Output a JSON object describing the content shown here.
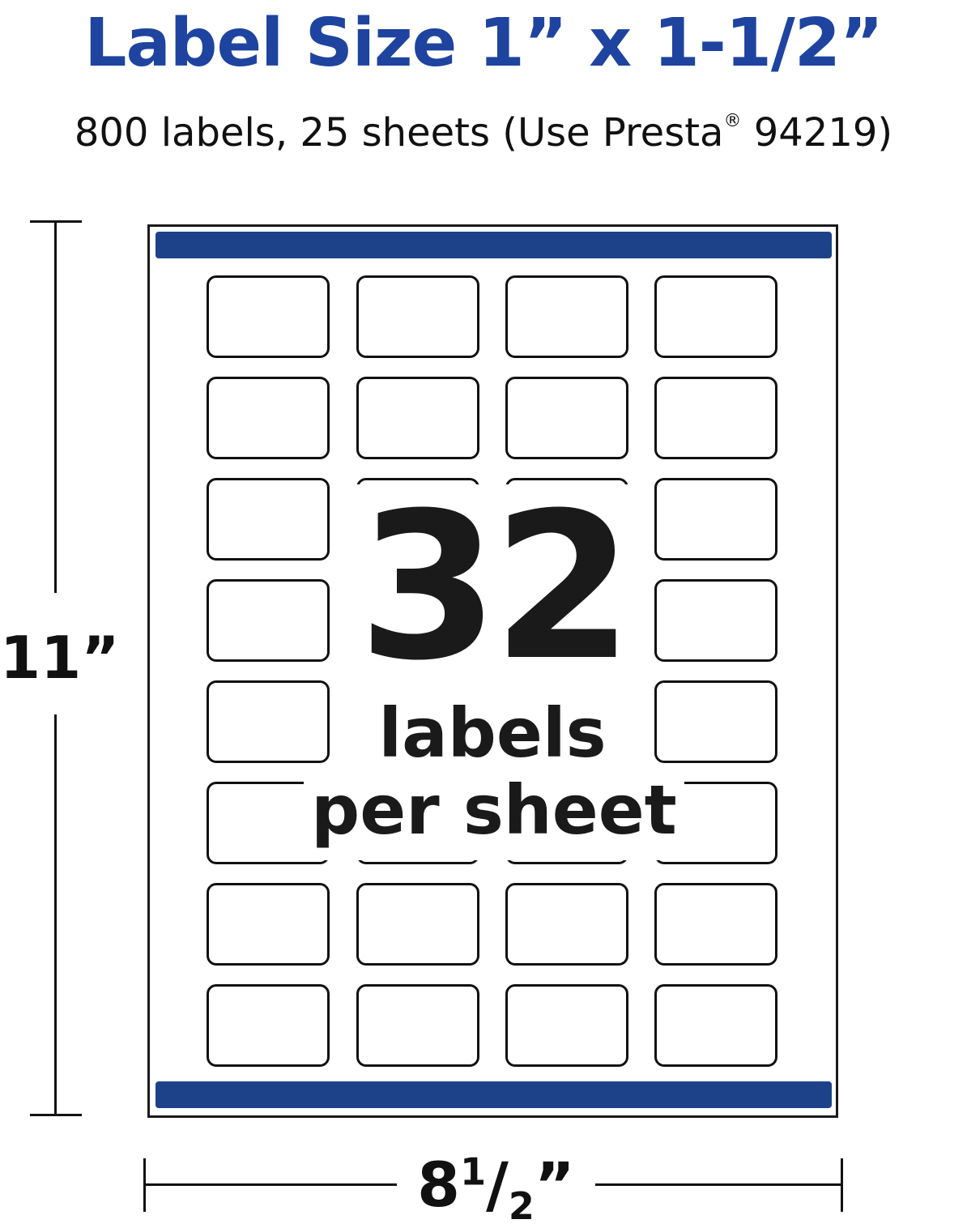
{
  "title": "Label Size 1” x 1-1/2”",
  "subtitle": {
    "main": "800 labels, 25 sheets (Use Presta",
    "registered": "®",
    "tail": " 94219)"
  },
  "sheet": {
    "rows": 8,
    "columns": 4,
    "count": "32",
    "count_label": "labels",
    "count_suffix": "per sheet",
    "bar_color": "#1d4289"
  },
  "dimensions": {
    "height": "11”",
    "width_whole": "8",
    "width_num": "1",
    "width_slash": "/",
    "width_den": "2",
    "width_mark": "”"
  },
  "colors": {
    "title": "#1e44a0",
    "bar": "#1d4289",
    "text": "#1a1a1a"
  }
}
